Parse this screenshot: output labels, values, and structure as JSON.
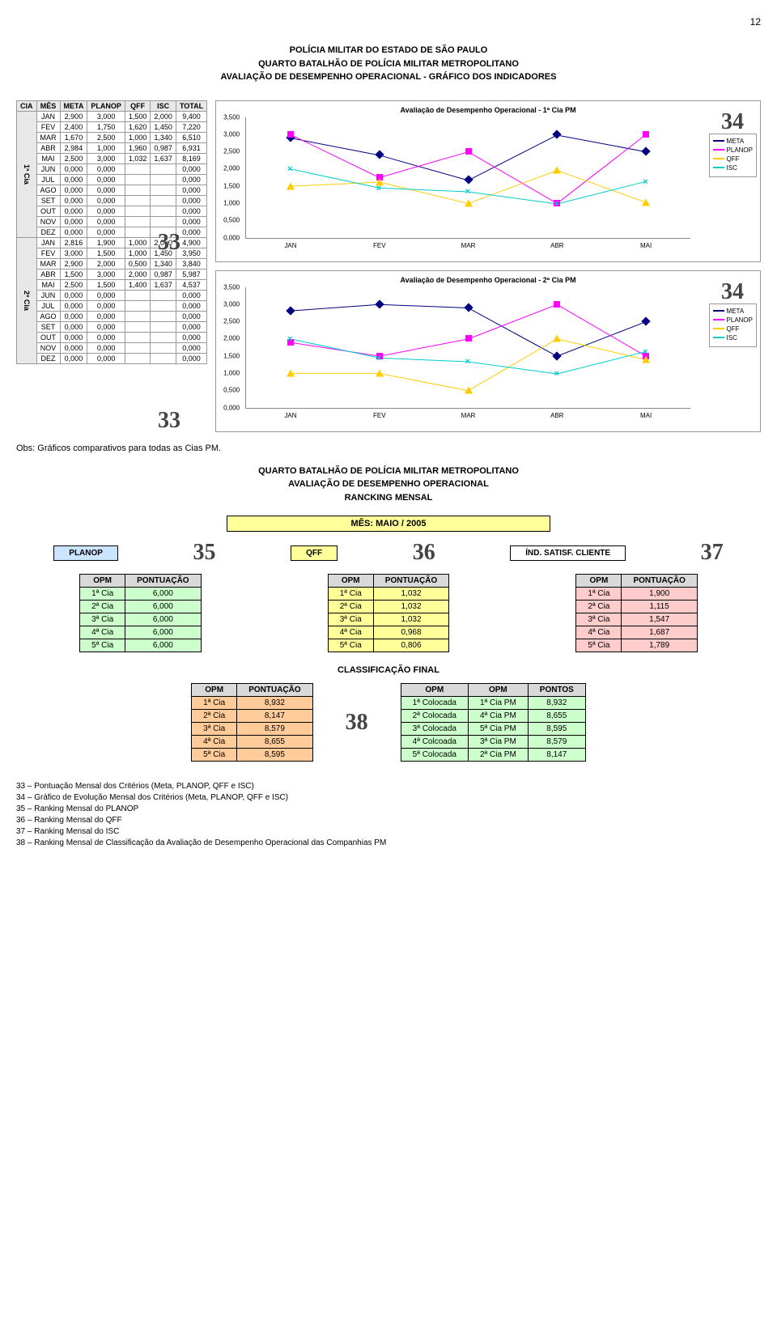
{
  "page_number": "12",
  "header": {
    "line1": "POLÍCIA MILITAR DO ESTADO DE SÃO PAULO",
    "line2": "QUARTO BATALHÃO DE POLÍCIA MILITAR METROPOLITANO",
    "line3": "AVALIAÇÃO DE DESEMPENHO OPERACIONAL - GRÁFICO DOS INDICADORES"
  },
  "table": {
    "headers": [
      "CIA",
      "MÊS",
      "META",
      "PLANOP",
      "QFF",
      "ISC",
      "TOTAL"
    ],
    "cia1_label": "1ª Cia",
    "cia2_label": "2ª Cia",
    "rows1": [
      [
        "JAN",
        "2,900",
        "3,000",
        "1,500",
        "2,000",
        "9,400"
      ],
      [
        "FEV",
        "2,400",
        "1,750",
        "1,620",
        "1,450",
        "7,220"
      ],
      [
        "MAR",
        "1,670",
        "2,500",
        "1,000",
        "1,340",
        "6,510"
      ],
      [
        "ABR",
        "2,984",
        "1,000",
        "1,960",
        "0,987",
        "6,931"
      ],
      [
        "MAI",
        "2,500",
        "3,000",
        "1,032",
        "1,637",
        "8,169"
      ],
      [
        "JUN",
        "0,000",
        "0,000",
        "",
        "",
        "0,000"
      ],
      [
        "JUL",
        "0,000",
        "0,000",
        "",
        "",
        "0,000"
      ],
      [
        "AGO",
        "0,000",
        "0,000",
        "",
        "",
        "0,000"
      ],
      [
        "SET",
        "0,000",
        "0,000",
        "",
        "",
        "0,000"
      ],
      [
        "OUT",
        "0,000",
        "0,000",
        "",
        "",
        "0,000"
      ],
      [
        "NOV",
        "0,000",
        "0,000",
        "",
        "",
        "0,000"
      ],
      [
        "DEZ",
        "0,000",
        "0,000",
        "",
        "",
        "0,000"
      ]
    ],
    "rows2": [
      [
        "JAN",
        "2,816",
        "1,900",
        "1,000",
        "2,000",
        "4,900"
      ],
      [
        "FEV",
        "3,000",
        "1,500",
        "1,000",
        "1,450",
        "3,950"
      ],
      [
        "MAR",
        "2,900",
        "2,000",
        "0,500",
        "1,340",
        "3,840"
      ],
      [
        "ABR",
        "1,500",
        "3,000",
        "2,000",
        "0,987",
        "5,987"
      ],
      [
        "MAI",
        "2,500",
        "1,500",
        "1,400",
        "1,637",
        "4,537"
      ],
      [
        "JUN",
        "0,000",
        "0,000",
        "",
        "",
        "0,000"
      ],
      [
        "JUL",
        "0,000",
        "0,000",
        "",
        "",
        "0,000"
      ],
      [
        "AGO",
        "0,000",
        "0,000",
        "",
        "",
        "0,000"
      ],
      [
        "SET",
        "0,000",
        "0,000",
        "",
        "",
        "0,000"
      ],
      [
        "OUT",
        "0,000",
        "0,000",
        "",
        "",
        "0,000"
      ],
      [
        "NOV",
        "0,000",
        "0,000",
        "",
        "",
        "0,000"
      ],
      [
        "DEZ",
        "0,000",
        "0,000",
        "",
        "",
        "0,000"
      ]
    ]
  },
  "callouts": {
    "c33": "33",
    "c34": "34",
    "c35": "35",
    "c36": "36",
    "c37": "37",
    "c38": "38"
  },
  "charts": {
    "ylim": [
      0,
      3.5
    ],
    "ytick_step": 0.5,
    "yticks": [
      "0,000",
      "0,500",
      "1,000",
      "1,500",
      "2,000",
      "2,500",
      "3,000",
      "3,500"
    ],
    "xticks": [
      "JAN",
      "FEV",
      "MAR",
      "ABR",
      "MAI"
    ],
    "legend": [
      "META",
      "PLANOP",
      "QFF",
      "ISC"
    ],
    "colors": {
      "META": "#000080",
      "PLANOP": "#ff00ff",
      "QFF": "#ffcc00",
      "ISC": "#00cccc"
    },
    "chart1": {
      "title": "Avaliação de Desempenho Operacional - 1ª Cia PM",
      "series": {
        "META": [
          2.9,
          2.4,
          1.67,
          2.984,
          2.5
        ],
        "PLANOP": [
          3.0,
          1.75,
          2.5,
          1.0,
          3.0
        ],
        "QFF": [
          1.5,
          1.62,
          1.0,
          1.96,
          1.032
        ],
        "ISC": [
          2.0,
          1.45,
          1.34,
          0.987,
          1.637
        ]
      }
    },
    "chart2": {
      "title": "Avaliação de Desempenho Operacional - 2ª Cia PM",
      "series": {
        "META": [
          2.816,
          3.0,
          2.9,
          1.5,
          2.5
        ],
        "PLANOP": [
          1.9,
          1.5,
          2.0,
          3.0,
          1.5
        ],
        "QFF": [
          1.0,
          1.0,
          0.5,
          2.0,
          1.4
        ],
        "ISC": [
          2.0,
          1.45,
          1.34,
          0.987,
          1.637
        ]
      }
    }
  },
  "obs_text": "Obs: Gráficos comparativos para todas as Cias PM.",
  "sub_header": {
    "line1": "QUARTO BATALHÃO DE POLÍCIA MILITAR METROPOLITANO",
    "line2": "AVALIAÇÃO DE DESEMPENHO OPERACIONAL",
    "line3": "RANCKING MENSAL"
  },
  "mes_label": "MÊS: MAIO / 2005",
  "rank_labels": {
    "planop": "PLANOP",
    "qff": "QFF",
    "isc": "ÍND. SATISF. CLIENTE"
  },
  "rank_headers": {
    "opm": "OPM",
    "pont": "PONTUAÇÃO"
  },
  "rank_planop": [
    [
      "1ª Cia",
      "6,000"
    ],
    [
      "2ª Cia",
      "6,000"
    ],
    [
      "3ª Cia",
      "6,000"
    ],
    [
      "4ª Cia",
      "6,000"
    ],
    [
      "5ª Cia",
      "6,000"
    ]
  ],
  "rank_qff": [
    [
      "1ª Cia",
      "1,032"
    ],
    [
      "2ª Cia",
      "1,032"
    ],
    [
      "3ª Cia",
      "1,032"
    ],
    [
      "4ª Cia",
      "0,968"
    ],
    [
      "5ª Cia",
      "0,806"
    ]
  ],
  "rank_isc": [
    [
      "1ª Cia",
      "1,900"
    ],
    [
      "2ª Cia",
      "1,115"
    ],
    [
      "3ª Cia",
      "1,547"
    ],
    [
      "4ª Cia",
      "1,687"
    ],
    [
      "5ª Cia",
      "1,789"
    ]
  ],
  "class_final_label": "CLASSIFICAÇÃO FINAL",
  "final_left_headers": [
    "OPM",
    "PONTUAÇÃO"
  ],
  "final_left": [
    [
      "1ª Cia",
      "8,932"
    ],
    [
      "2ª Cia",
      "8,147"
    ],
    [
      "3ª Cia",
      "8,579"
    ],
    [
      "4ª Cia",
      "8,655"
    ],
    [
      "5ª Cia",
      "8,595"
    ]
  ],
  "final_right_headers": [
    "OPM",
    "OPM",
    "PONTOS"
  ],
  "final_right": [
    [
      "1ª Colocada",
      "1ª Cia PM",
      "8,932"
    ],
    [
      "2ª Colocada",
      "4ª Cia PM",
      "8,655"
    ],
    [
      "3ª Colocada",
      "5ª Cia PM",
      "8,595"
    ],
    [
      "4ª Colcoada",
      "3ª Cia PM",
      "8,579"
    ],
    [
      "5ª Colocada",
      "2ª Cia PM",
      "8,147"
    ]
  ],
  "footer": [
    "33 – Pontuação Mensal dos Critérios (Meta, PLANOP, QFF e ISC)",
    "34 – Gráfico de Evolução Mensal dos Critérios (Meta, PLANOP, QFF e ISC)",
    "35 – Ranking Mensal do PLANOP",
    "36 – Ranking Mensal do QFF",
    "37 – Ranking Mensal do ISC",
    "38 – Ranking Mensal de Classificação da Avaliação de Desempenho Operacional das Companhias PM"
  ],
  "row_colors": {
    "planop": [
      "#ccffcc",
      "#ccffcc",
      "#ccffcc",
      "#ccffcc",
      "#ccffcc"
    ],
    "qff": [
      "#ffff99",
      "#ffff99",
      "#ffff99",
      "#ffff99",
      "#ffff99"
    ],
    "isc": [
      "#ffcccc",
      "#ffcccc",
      "#ffcccc",
      "#ffcccc",
      "#ffcccc"
    ],
    "final_left": [
      "#ffcc99",
      "#ffcc99",
      "#ffcc99",
      "#ffcc99",
      "#ffcc99"
    ],
    "final_right": [
      "#ccffcc",
      "#ccffcc",
      "#ccffcc",
      "#ccffcc",
      "#ccffcc"
    ]
  }
}
